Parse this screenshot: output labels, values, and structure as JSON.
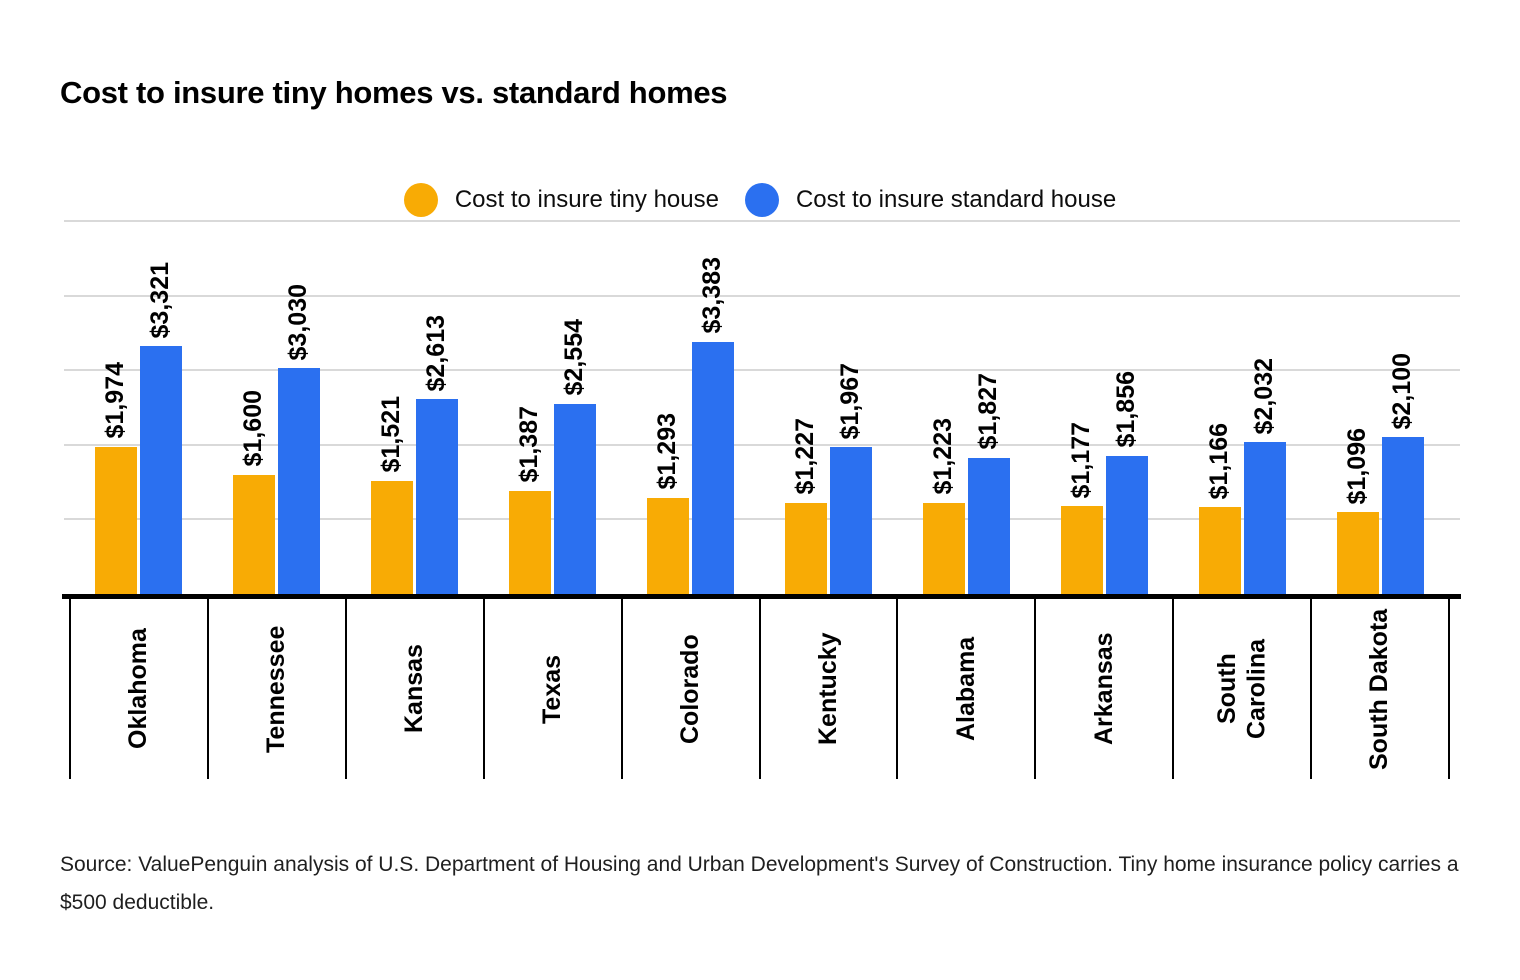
{
  "title": "Cost to insure tiny homes vs. standard homes",
  "legend": {
    "items": [
      {
        "label": "Cost to insure tiny house",
        "color": "#F8AB05"
      },
      {
        "label": "Cost to insure standard house",
        "color": "#2B70F0"
      }
    ]
  },
  "source_note": "Source: ValuePenguin analysis of U.S. Department of Housing and Urban Development's Survey of Construction. Tiny home insurance policy carries a $500 deductible.",
  "colors": {
    "tiny_bar": "#F8AB05",
    "standard_bar": "#2B70F0",
    "gridline": "#D9D9D9",
    "axis": "#000000",
    "source_text": "#1F1F1F"
  },
  "chart_data": {
    "type": "bar",
    "title": "Cost to insure tiny homes vs. standard homes",
    "categories": [
      "Oklahoma",
      "Tennessee",
      "Kansas",
      "Texas",
      "Colorado",
      "Kentucky",
      "Alabama",
      "Arkansas",
      "South Carolina",
      "South Dakota"
    ],
    "series": [
      {
        "name": "Cost to insure tiny house",
        "color": "#F8AB05",
        "values": [
          1974,
          1600,
          1521,
          1387,
          1293,
          1227,
          1223,
          1177,
          1166,
          1096
        ],
        "value_labels": [
          "$1,974",
          "$1,600",
          "$1,521",
          "$1,387",
          "$1,293",
          "$1,227",
          "$1,223",
          "$1,177",
          "$1,166",
          "$1,096"
        ]
      },
      {
        "name": "Cost to insure standard house",
        "color": "#2B70F0",
        "values": [
          3321,
          3030,
          2613,
          2554,
          3383,
          1967,
          1827,
          1856,
          2032,
          2100
        ],
        "value_labels": [
          "$3,321",
          "$3,030",
          "$2,613",
          "$2,554",
          "$3,383",
          "$1,967",
          "$1,827",
          "$1,856",
          "$2,032",
          "$2,100"
        ]
      }
    ],
    "xlabel": "",
    "ylabel": "",
    "ylim": [
      0,
      5000
    ],
    "gridline_values": [
      1000,
      2000,
      3000,
      4000,
      5000
    ],
    "grid": true,
    "y_axis_labels_shown": false,
    "legend_position": "top",
    "value_labels_rotated": true,
    "category_labels_rotated": true
  }
}
